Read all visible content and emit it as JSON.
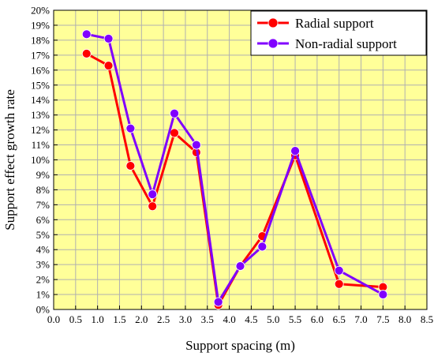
{
  "chart_data": {
    "type": "line",
    "xlabel": "Support spacing (m)",
    "ylabel": "Support effect growth rate",
    "xlim": [
      0,
      8.5
    ],
    "ylim": [
      0,
      20
    ],
    "x_ticks": [
      0,
      0.5,
      1,
      1.5,
      2,
      2.5,
      3,
      3.5,
      4,
      4.5,
      5,
      5.5,
      6,
      6.5,
      7,
      7.5,
      8,
      8.5
    ],
    "x_tick_labels": [
      "0.0",
      "0.5",
      "1.0",
      "1.5",
      "2.0",
      "2.5",
      "3.0",
      "3.5",
      "4.0",
      "4.5",
      "5.0",
      "5.5",
      "6.0",
      "6.5",
      "7.0",
      "7.5",
      "8.0",
      "8.5"
    ],
    "y_ticks": [
      0,
      1,
      2,
      3,
      4,
      5,
      6,
      7,
      8,
      9,
      10,
      11,
      12,
      13,
      14,
      15,
      16,
      17,
      18,
      19,
      20
    ],
    "y_tick_labels": [
      "0%",
      "1%",
      "2%",
      "3%",
      "4%",
      "5%",
      "6%",
      "7%",
      "8%",
      "9%",
      "10%",
      "11%",
      "12%",
      "13%",
      "14%",
      "15%",
      "16%",
      "17%",
      "18%",
      "19%",
      "20%"
    ],
    "grid": true,
    "background_color": "#ffff99",
    "grid_color": "#b0b0b0",
    "legend_position": "top-right",
    "series": [
      {
        "name": "Radial support",
        "color": "#ff0000",
        "x": [
          0.75,
          1.25,
          1.75,
          2.25,
          2.75,
          3.25,
          3.75,
          4.25,
          4.75,
          5.5,
          6.5,
          7.5
        ],
        "values": [
          17.1,
          16.3,
          9.6,
          6.9,
          11.8,
          10.5,
          0.3,
          2.9,
          4.9,
          10.3,
          1.7,
          1.5
        ]
      },
      {
        "name": "Non-radial support",
        "color": "#8000ff",
        "x": [
          0.75,
          1.25,
          1.75,
          2.25,
          2.75,
          3.25,
          3.75,
          4.25,
          4.75,
          5.5,
          6.5,
          7.5
        ],
        "values": [
          18.4,
          18.1,
          12.1,
          7.7,
          13.1,
          11.0,
          0.5,
          2.9,
          4.2,
          10.6,
          2.6,
          1.0
        ]
      }
    ]
  }
}
